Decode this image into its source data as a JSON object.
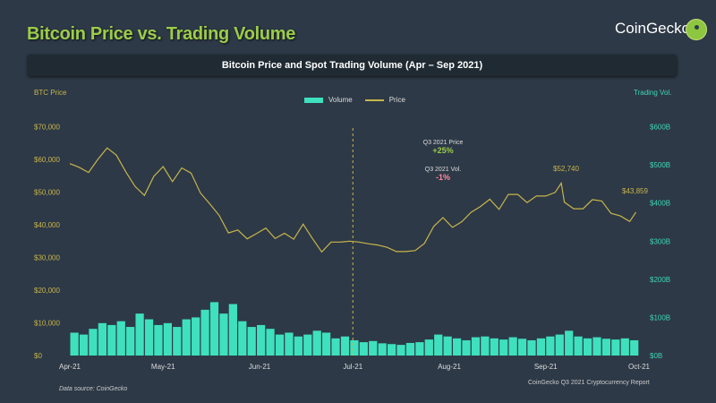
{
  "header": {
    "title": "Bitcoin Price vs. Trading Volume",
    "brand": "CoinGecko",
    "banner": "Bitcoin Price and Spot Trading Volume (Apr – Sep 2021)"
  },
  "footer": {
    "source": "Data source: CoinGecko",
    "report": "CoinGecko Q3 2021 Cryptocurrency Report"
  },
  "annotations": {
    "price_label": "Q3 2021 Price",
    "price_change": "+25%",
    "vol_label": "Q3 2021 Vol.",
    "vol_change": "-1%",
    "peak_label": "$52,740",
    "last_label": "$43,859"
  },
  "colors": {
    "price": "#c8b54a",
    "volume": "#3fe0bd",
    "up": "#9ccc4a",
    "down": "#ff8a9a",
    "background": "#2d3947"
  },
  "chart_data": {
    "type": "bar+line",
    "title": "Bitcoin Price and Spot Trading Volume (Apr – Sep 2021)",
    "ylabel_left": "BTC Price",
    "ylabel_right": "Trading Vol.",
    "legend": [
      "Volume",
      "Price"
    ],
    "legend_position": "top-center",
    "ylim_left": [
      0,
      70000
    ],
    "ylim_right": [
      0,
      600
    ],
    "left_ticks": [
      "$0",
      "$10,000",
      "$20,000",
      "$30,000",
      "$40,000",
      "$50,000",
      "$60,000",
      "$70,000"
    ],
    "right_ticks": [
      "$0B",
      "$100B",
      "$200B",
      "$300B",
      "$400B",
      "$500B",
      "$600B"
    ],
    "x_ticks": [
      "Apr-21",
      "May-21",
      "Jun-21",
      "Jul-21",
      "Aug-21",
      "Sep-21",
      "Oct-21"
    ],
    "grid": false,
    "marker_date": "2021-07-01",
    "price": {
      "name": "Price",
      "x": [
        "2021-04-01",
        "2021-04-04",
        "2021-04-07",
        "2021-04-10",
        "2021-04-13",
        "2021-04-16",
        "2021-04-19",
        "2021-04-22",
        "2021-04-25",
        "2021-04-28",
        "2021-05-01",
        "2021-05-04",
        "2021-05-07",
        "2021-05-10",
        "2021-05-13",
        "2021-05-16",
        "2021-05-19",
        "2021-05-22",
        "2021-05-25",
        "2021-05-28",
        "2021-05-31",
        "2021-06-03",
        "2021-06-06",
        "2021-06-09",
        "2021-06-12",
        "2021-06-15",
        "2021-06-18",
        "2021-06-21",
        "2021-06-24",
        "2021-06-27",
        "2021-06-30",
        "2021-07-03",
        "2021-07-06",
        "2021-07-09",
        "2021-07-12",
        "2021-07-15",
        "2021-07-18",
        "2021-07-21",
        "2021-07-24",
        "2021-07-27",
        "2021-07-30",
        "2021-08-02",
        "2021-08-05",
        "2021-08-08",
        "2021-08-11",
        "2021-08-14",
        "2021-08-17",
        "2021-08-20",
        "2021-08-23",
        "2021-08-26",
        "2021-08-29",
        "2021-09-01",
        "2021-09-04",
        "2021-09-06",
        "2021-09-07",
        "2021-09-10",
        "2021-09-13",
        "2021-09-16",
        "2021-09-19",
        "2021-09-22",
        "2021-09-25",
        "2021-09-28",
        "2021-09-30"
      ],
      "values": [
        58700,
        57600,
        56000,
        60000,
        63500,
        61300,
        56200,
        51700,
        49000,
        54800,
        57800,
        53200,
        57400,
        55800,
        49700,
        46400,
        42900,
        37500,
        38400,
        35700,
        37300,
        39000,
        35800,
        37400,
        35600,
        40200,
        35800,
        31700,
        34700,
        34700,
        35000,
        34700,
        34200,
        33800,
        33100,
        31800,
        31800,
        32100,
        34300,
        39500,
        42200,
        39200,
        40900,
        43800,
        45600,
        47800,
        44700,
        49300,
        49300,
        46800,
        48800,
        48800,
        49900,
        52740,
        46900,
        44900,
        44900,
        47700,
        47300,
        43500,
        42700,
        41000,
        43859
      ]
    },
    "volume": {
      "name": "Volume",
      "unit": "B USD",
      "start": "2021-04-01",
      "step_days": 3,
      "values": [
        60,
        55,
        70,
        85,
        80,
        90,
        75,
        110,
        95,
        80,
        85,
        75,
        95,
        100,
        120,
        140,
        110,
        135,
        90,
        75,
        80,
        70,
        55,
        60,
        50,
        55,
        65,
        60,
        45,
        50,
        40,
        35,
        38,
        32,
        30,
        28,
        33,
        35,
        42,
        55,
        50,
        45,
        40,
        48,
        50,
        45,
        42,
        48,
        44,
        40,
        45,
        50,
        55,
        65,
        50,
        45,
        48,
        44,
        42,
        45,
        40
      ]
    }
  }
}
